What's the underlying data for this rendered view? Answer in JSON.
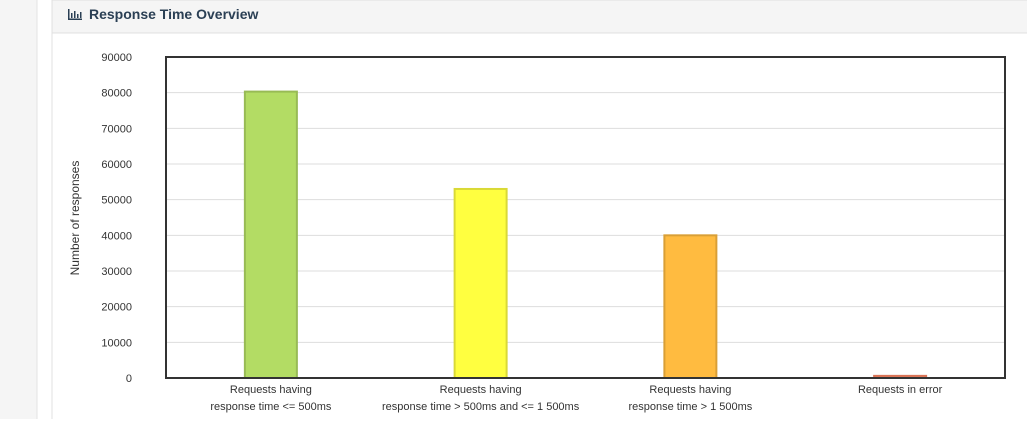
{
  "chart_data": {
    "type": "bar",
    "title": "Response Time Overview",
    "y_label": "Number of responses",
    "categories": [
      [
        "Requests having",
        "response time <= 500ms"
      ],
      [
        "Requests having",
        "response time > 500ms and <= 1 500ms"
      ],
      [
        "Requests having",
        "response time > 1 500ms"
      ],
      [
        "Requests in error"
      ]
    ],
    "values": [
      80300,
      53000,
      40000,
      600
    ],
    "colors": [
      "#b3dc64",
      "#ffff40",
      "#ffbb40",
      "#ff8866"
    ],
    "ylim": [
      0,
      90000
    ],
    "yticks": [
      0,
      10000,
      20000,
      30000,
      40000,
      50000,
      60000,
      70000,
      80000,
      90000
    ],
    "grid": true
  }
}
